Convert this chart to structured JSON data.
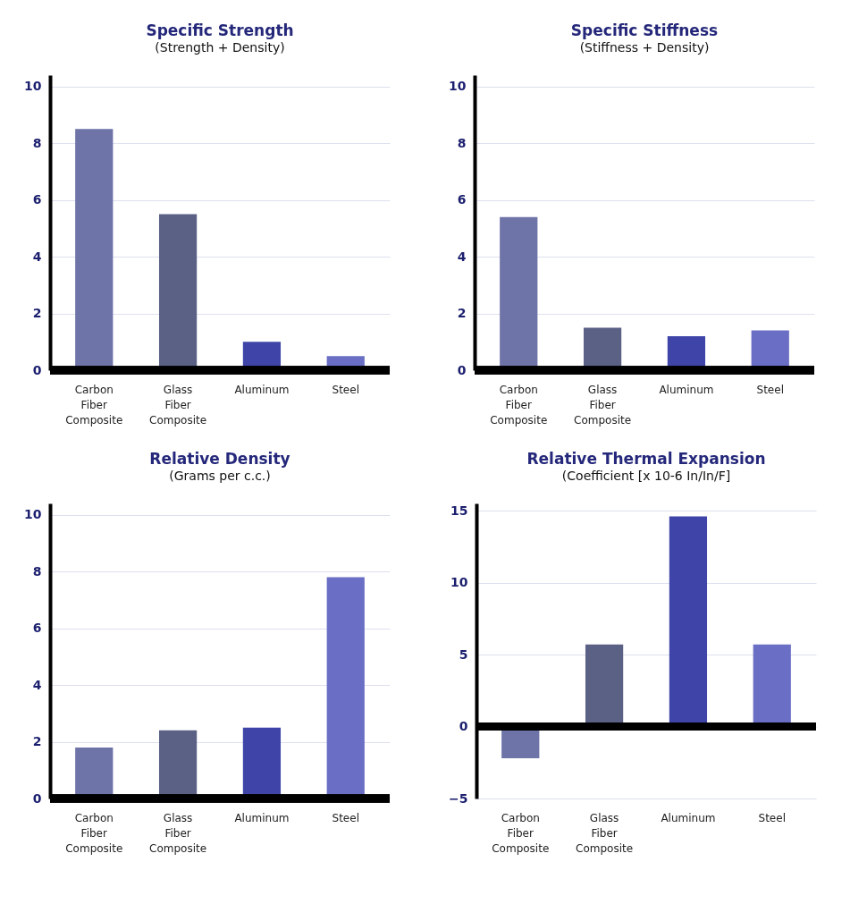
{
  "chart_data": [
    {
      "type": "bar",
      "title": "Specific Strength",
      "subtitle": "(Strength + Density)",
      "categories": [
        "Carbon Fiber Composite",
        "Glass Fiber Composite",
        "Aluminum",
        "Steel"
      ],
      "values": [
        8.5,
        5.5,
        1.0,
        0.5
      ],
      "colors": [
        "#6e73a8",
        "#5b6185",
        "#3f45a8",
        "#6a6ec4"
      ],
      "ylim": [
        0,
        10.4
      ],
      "yticks": [
        0,
        2,
        4,
        6,
        8,
        10
      ],
      "grid": "y"
    },
    {
      "type": "bar",
      "title": "Specific Stiffness",
      "subtitle": "(Stiffness + Density)",
      "categories": [
        "Carbon Fiber Composite",
        "Glass Fiber Composite",
        "Aluminum",
        "Steel"
      ],
      "values": [
        5.4,
        1.5,
        1.2,
        1.4
      ],
      "colors": [
        "#6e73a8",
        "#5b6185",
        "#3f45a8",
        "#6a6ec4"
      ],
      "ylim": [
        0,
        10.4
      ],
      "yticks": [
        0,
        2,
        4,
        6,
        8,
        10
      ],
      "grid": "y"
    },
    {
      "type": "bar",
      "title": "Relative Density",
      "subtitle": "(Grams per c.c.)",
      "categories": [
        "Carbon Fiber Composite",
        "Glass Fiber Composite",
        "Aluminum",
        "Steel"
      ],
      "values": [
        1.8,
        2.4,
        2.5,
        7.8
      ],
      "colors": [
        "#6e73a8",
        "#5b6185",
        "#3f45a8",
        "#6a6ec4"
      ],
      "ylim": [
        0,
        10.4
      ],
      "yticks": [
        0,
        2,
        4,
        6,
        8,
        10
      ],
      "grid": "y"
    },
    {
      "type": "bar",
      "title": "Relative Thermal Expansion",
      "subtitle": "(Coefficient [x 10-6 In/In/F]",
      "categories": [
        "Carbon Fiber Composite",
        "Glass Fiber Composite",
        "Aluminum",
        "Steel"
      ],
      "values": [
        -2.2,
        5.7,
        14.6,
        5.7
      ],
      "colors": [
        "#6e73a8",
        "#5b6185",
        "#3f45a8",
        "#6a6ec4"
      ],
      "ylim": [
        -5,
        15.5
      ],
      "yticks": [
        -5,
        0,
        5,
        10,
        15
      ],
      "grid": "y"
    }
  ]
}
